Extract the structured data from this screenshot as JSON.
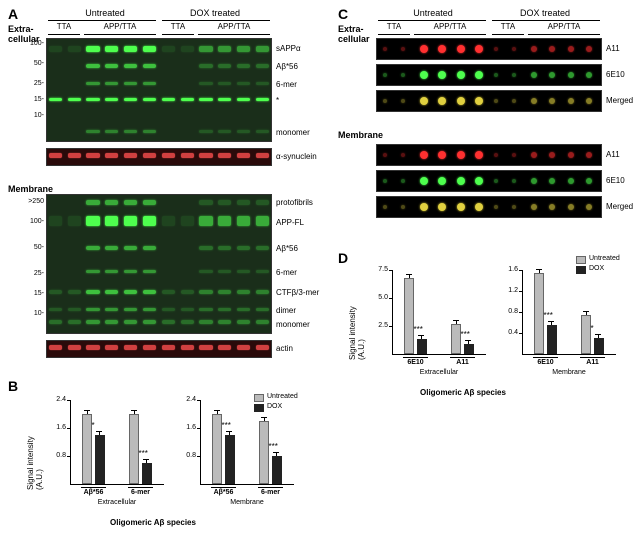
{
  "panelA": {
    "label": "A",
    "extracellular_label": "Extra-\ncellular",
    "membrane_label": "Membrane",
    "treatment_headers": [
      "Untreated",
      "DOX treated"
    ],
    "genotype_headers": [
      "TTA",
      "APP/TTA",
      "TTA",
      "APP/TTA"
    ],
    "ec_band_labels": [
      "sAPPα",
      "Aβ*56",
      "6-mer",
      "*",
      "monomer"
    ],
    "ec_mw": [
      "100-",
      "50-",
      "25-",
      "15-",
      "10-"
    ],
    "ec_loading": "α-synuclein",
    "mem_band_labels": [
      "protofibrils",
      "APP-FL",
      "Aβ*56",
      "6-mer",
      "CTFβ/3-mer",
      "dimer",
      "monomer"
    ],
    "mem_mw": [
      ">250",
      "100-",
      "50-",
      "25-",
      "15-",
      "10-"
    ],
    "mem_loading": "actin",
    "blot_bg": "#1a2e1a",
    "red_bg": "#2a0a0a",
    "green": "#4eff4e",
    "red": "#d04040"
  },
  "panelB": {
    "label": "B",
    "charts": [
      {
        "title": "Extracellular",
        "groups": [
          "Aβ*56",
          "6-mer"
        ],
        "untreated": [
          2.0,
          2.0
        ],
        "dox": [
          1.4,
          0.6
        ],
        "sig": [
          "*",
          "***"
        ],
        "ylim": [
          0,
          2.4
        ],
        "yticks": [
          0.8,
          1.6,
          2.4
        ]
      },
      {
        "title": "Membrane",
        "groups": [
          "Aβ*56",
          "6-mer"
        ],
        "untreated": [
          2.0,
          1.8
        ],
        "dox": [
          1.4,
          0.8
        ],
        "sig": [
          "***",
          "***"
        ],
        "ylim": [
          0,
          2.4
        ],
        "yticks": [
          0.8,
          1.6,
          2.4
        ]
      }
    ],
    "y_label": "Signal intensity\n(A.U.)",
    "x_label": "Oligomeric Aβ species",
    "legend": [
      "Untreated",
      "DOX"
    ],
    "colors": {
      "untreated": "#bbbbbb",
      "dox": "#222222"
    }
  },
  "panelC": {
    "label": "C",
    "extracellular_label": "Extra-\ncellular",
    "membrane_label": "Membrane",
    "treatment_headers": [
      "Untreated",
      "DOX treated"
    ],
    "genotype_headers": [
      "TTA",
      "APP/TTA",
      "TTA",
      "APP/TTA"
    ],
    "row_labels": [
      "A11",
      "6E10",
      "Merged"
    ],
    "bg": "#000000"
  },
  "panelD": {
    "label": "D",
    "charts": [
      {
        "title": "Extracellular",
        "groups": [
          "6E10",
          "A11"
        ],
        "untreated": [
          6.8,
          2.7
        ],
        "dox": [
          1.3,
          0.9
        ],
        "sig": [
          "***",
          "***"
        ],
        "ylim": [
          0,
          7.5
        ],
        "yticks": [
          2.5,
          5.0,
          7.5
        ]
      },
      {
        "title": "Membrane",
        "groups": [
          "6E10",
          "A11"
        ],
        "untreated": [
          1.55,
          0.75
        ],
        "dox": [
          0.55,
          0.3
        ],
        "sig": [
          "***",
          "*"
        ],
        "ylim": [
          0,
          1.6
        ],
        "yticks": [
          0.4,
          0.8,
          1.2,
          1.6
        ]
      }
    ],
    "y_label": "Signal intensity\n(A.U.)",
    "x_label": "Oligomeric Aβ species",
    "legend": [
      "Untreated",
      "DOX"
    ],
    "colors": {
      "untreated": "#bbbbbb",
      "dox": "#222222"
    }
  }
}
